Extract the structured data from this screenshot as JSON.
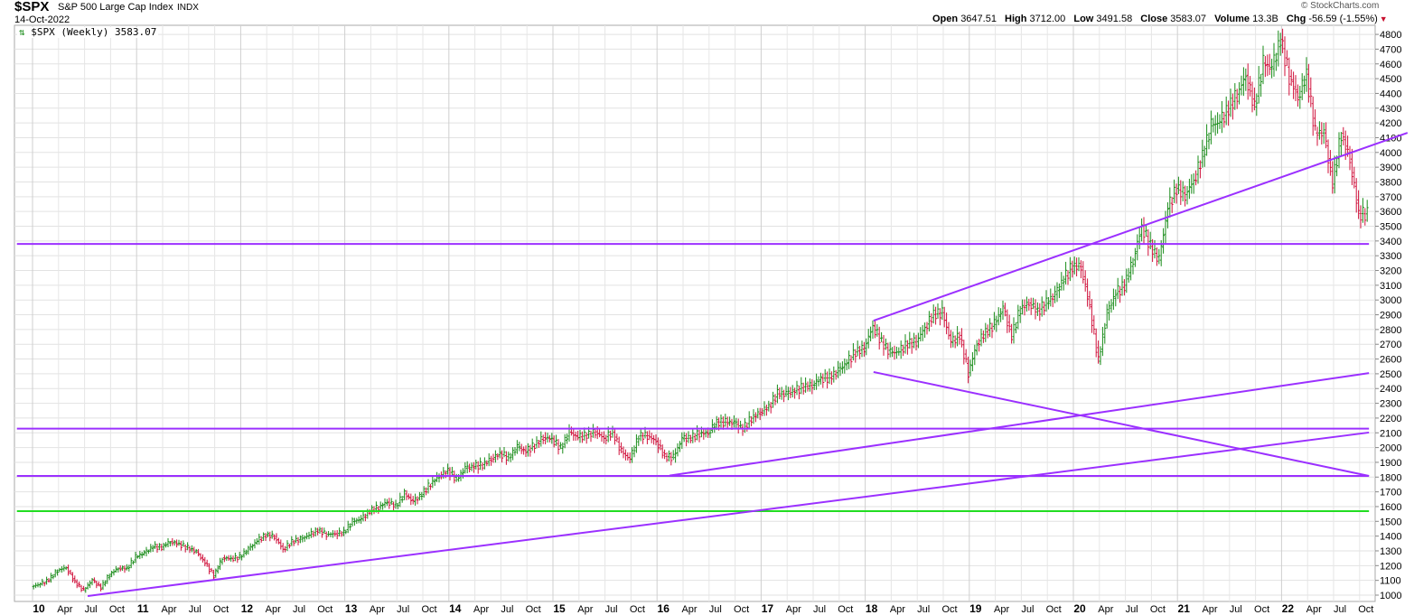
{
  "header": {
    "symbol": "$SPX",
    "name": "S&P 500 Large Cap Index",
    "exchange": "INDX",
    "date": "14-Oct-2022",
    "copyright": "© StockCharts.com",
    "legend": "$SPX (Weekly) 3583.07",
    "stats": {
      "open_label": "Open",
      "open": "3647.51",
      "high_label": "High",
      "high": "3712.00",
      "low_label": "Low",
      "low": "3491.58",
      "close_label": "Close",
      "close": "3583.07",
      "volume_label": "Volume",
      "volume": "13.3B",
      "chg_label": "Chg",
      "chg": "-56.59 (-1.55%)"
    }
  },
  "chart_data": {
    "type": "ohlc-bar",
    "title": "$SPX (Weekly)",
    "start_year": 2010,
    "ylim": [
      950,
      4850
    ],
    "xlim": [
      2009.93,
      2022.84
    ],
    "y_ticks": [
      1000,
      1100,
      1200,
      1300,
      1400,
      1500,
      1600,
      1700,
      1800,
      1900,
      2000,
      2100,
      2200,
      2300,
      2400,
      2500,
      2600,
      2700,
      2800,
      2900,
      3000,
      3100,
      3200,
      3300,
      3400,
      3500,
      3600,
      3700,
      3800,
      3900,
      4000,
      4100,
      4200,
      4300,
      4400,
      4500,
      4600,
      4700,
      4800
    ],
    "x_tick_labels": [
      "10",
      "Apr",
      "Jul",
      "Oct",
      "11",
      "Apr",
      "Jul",
      "Oct",
      "12",
      "Apr",
      "Jul",
      "Oct",
      "13",
      "Apr",
      "Jul",
      "Oct",
      "14",
      "Apr",
      "Jul",
      "Oct",
      "15",
      "Apr",
      "Jul",
      "Oct",
      "16",
      "Apr",
      "Jul",
      "Oct",
      "17",
      "Apr",
      "Jul",
      "Oct",
      "18",
      "Apr",
      "Jul",
      "Oct",
      "19",
      "Apr",
      "Jul",
      "Oct",
      "20",
      "Apr",
      "Jul",
      "Oct",
      "21",
      "Apr",
      "Jul",
      "Oct",
      "22",
      "Apr",
      "Jul",
      "Oct"
    ],
    "monthly_closes": [
      1074,
      1104,
      1169,
      1187,
      1089,
      1031,
      1102,
      1049,
      1141,
      1183,
      1181,
      1258,
      1286,
      1327,
      1326,
      1364,
      1345,
      1321,
      1292,
      1219,
      1131,
      1253,
      1247,
      1258,
      1312,
      1366,
      1408,
      1398,
      1310,
      1362,
      1379,
      1406,
      1441,
      1412,
      1416,
      1426,
      1498,
      1515,
      1569,
      1598,
      1631,
      1606,
      1686,
      1633,
      1682,
      1757,
      1806,
      1848,
      1783,
      1859,
      1872,
      1884,
      1924,
      1960,
      1931,
      2003,
      1972,
      2018,
      2068,
      2059,
      1995,
      2105,
      2068,
      2086,
      2107,
      2063,
      2104,
      1972,
      1920,
      2079,
      2080,
      2044,
      1940,
      1932,
      2060,
      2065,
      2097,
      2099,
      2174,
      2171,
      2168,
      2126,
      2199,
      2239,
      2279,
      2364,
      2363,
      2384,
      2412,
      2423,
      2470,
      2472,
      2519,
      2575,
      2648,
      2674,
      2824,
      2714,
      2641,
      2648,
      2705,
      2718,
      2816,
      2902,
      2914,
      2712,
      2760,
      2507,
      2704,
      2784,
      2834,
      2946,
      2752,
      2942,
      2980,
      2926,
      2977,
      3038,
      3141,
      3231,
      3226,
      2954,
      2585,
      2912,
      3044,
      3100,
      3271,
      3500,
      3363,
      3270,
      3622,
      3756,
      3714,
      3811,
      3973,
      4181,
      4204,
      4298,
      4395,
      4523,
      4308,
      4605,
      4567,
      4766,
      4516,
      4374,
      4530,
      4132,
      4132,
      3785,
      4130,
      3955,
      3586,
      3583
    ],
    "trendlines": [
      {
        "name": "resistance-3380",
        "color": "#9b30ff",
        "points": [
          [
            2009.85,
            3380
          ],
          [
            2022.84,
            3380
          ]
        ]
      },
      {
        "name": "support-2130",
        "color": "#9b30ff",
        "points": [
          [
            2009.85,
            2128
          ],
          [
            2022.84,
            2128
          ]
        ]
      },
      {
        "name": "support-1810",
        "color": "#9b30ff",
        "points": [
          [
            2009.85,
            1808
          ],
          [
            2022.84,
            1808
          ]
        ]
      },
      {
        "name": "level-1570",
        "color": "#22dd22",
        "points": [
          [
            2009.85,
            1569
          ],
          [
            2022.84,
            1569
          ]
        ]
      },
      {
        "name": "uptrend-2010",
        "color": "#9b30ff",
        "points": [
          [
            2010.53,
            994
          ],
          [
            2022.84,
            2102
          ]
        ]
      },
      {
        "name": "uptrend-2016",
        "color": "#9b30ff",
        "points": [
          [
            2016.12,
            1810
          ],
          [
            2022.84,
            2505
          ]
        ]
      },
      {
        "name": "channel-top-2018",
        "color": "#9b30ff",
        "points": [
          [
            2018.08,
            2860
          ],
          [
            2023.21,
            4133
          ]
        ]
      },
      {
        "name": "channel-bottom-2018",
        "color": "#9b30ff",
        "points": [
          [
            2018.08,
            2512
          ],
          [
            2022.84,
            1808
          ]
        ]
      }
    ],
    "up_color": "#1a8c1a",
    "down_color": "#d0103a",
    "grid": true
  }
}
